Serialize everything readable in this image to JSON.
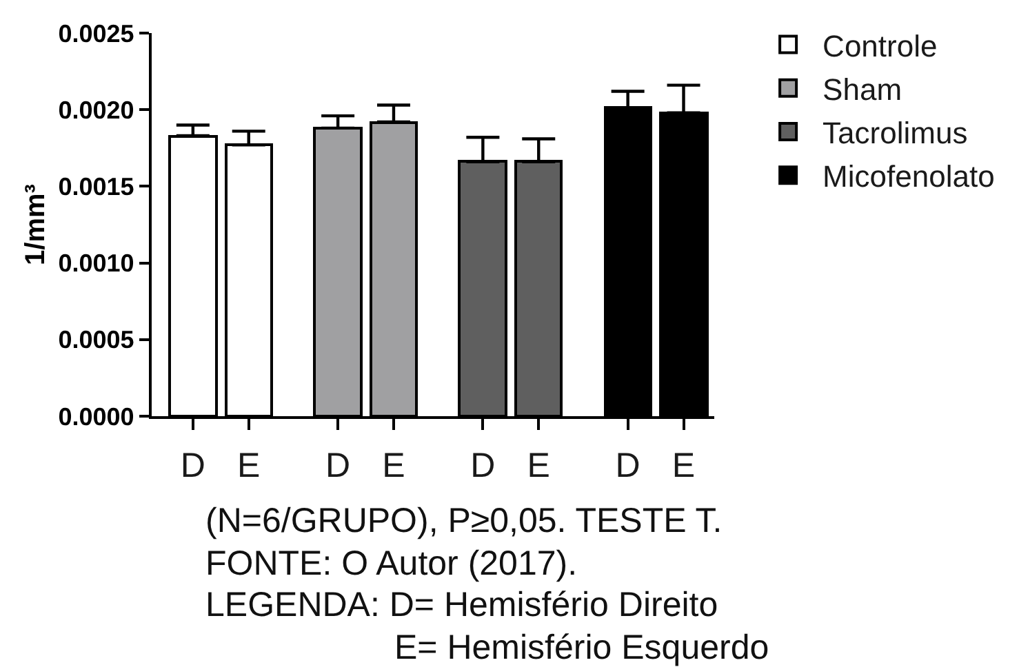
{
  "chart_data": {
    "type": "bar",
    "ylabel": "1/mm³",
    "categories": [
      "D",
      "E",
      "D",
      "E",
      "D",
      "E",
      "D",
      "E"
    ],
    "series": [
      {
        "name": "Controle",
        "color": "#ffffff",
        "values": [
          0.00183,
          0.00177,
          null,
          null,
          null,
          null,
          null,
          null
        ],
        "errors": [
          [
            0.00183,
            0.0019
          ],
          [
            0.00177,
            0.00186
          ],
          null,
          null,
          null,
          null,
          null,
          null
        ]
      },
      {
        "name": "Sham",
        "color": "#a0a0a2",
        "values": [
          null,
          null,
          0.00188,
          0.00192,
          null,
          null,
          null,
          null
        ],
        "errors": [
          null,
          null,
          [
            0.00188,
            0.00196
          ],
          [
            0.00192,
            0.00203
          ],
          null,
          null,
          null,
          null
        ]
      },
      {
        "name": "Tacrolimus",
        "color": "#5f5f5f",
        "values": [
          null,
          null,
          null,
          null,
          0.00166,
          0.00166,
          null,
          null
        ],
        "errors": [
          null,
          null,
          null,
          null,
          [
            0.00166,
            0.00182
          ],
          [
            0.00166,
            0.00181
          ],
          null,
          null
        ]
      },
      {
        "name": "Micofenolato",
        "color": "#000000",
        "values": [
          null,
          null,
          null,
          null,
          null,
          null,
          0.00201,
          0.00198
        ],
        "errors": [
          null,
          null,
          null,
          null,
          null,
          null,
          [
            0.00201,
            0.00212
          ],
          [
            0.00198,
            0.00216
          ]
        ]
      }
    ],
    "ylim": [
      0,
      0.0025
    ],
    "yticks": [
      {
        "value": 0,
        "label": "0.0000"
      },
      {
        "value": 0.0005,
        "label": "0.0005"
      },
      {
        "value": 0.001,
        "label": "0.0010"
      },
      {
        "value": 0.0015,
        "label": "0.0015"
      },
      {
        "value": 0.002,
        "label": "0.0020"
      },
      {
        "value": 0.0025,
        "label": "0.0025"
      }
    ],
    "grid": false,
    "legend": "top right",
    "annotations": [
      "(N=6/GRUPO), P≥0,05. TESTE T.",
      "FONTE: O Autor (2017).",
      "LEGENDA: D= Hemisfério Direito",
      "E= Hemisfério Esquerdo"
    ]
  }
}
